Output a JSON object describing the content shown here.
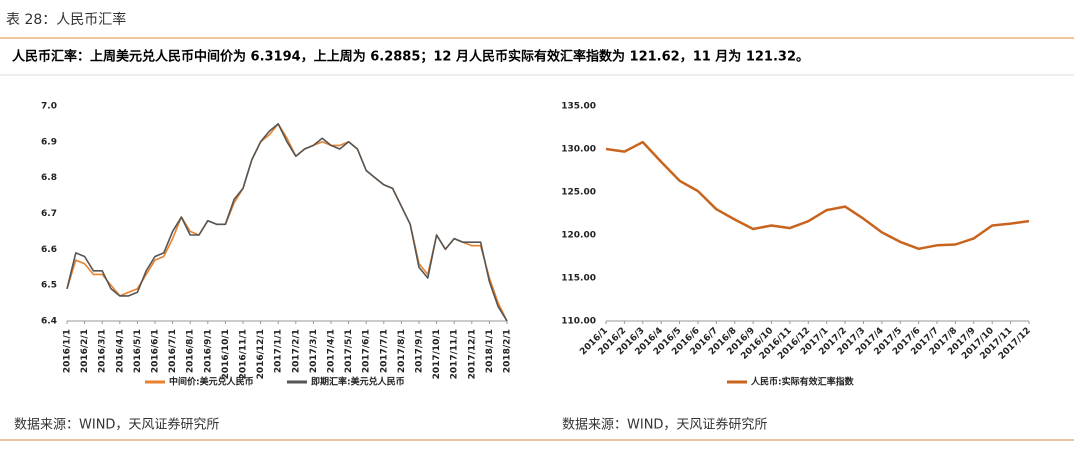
{
  "header": {
    "title": "表 28：人民币汇率",
    "summary": "人民币汇率：上周美元兑人民币中间价为 6.3194，上上周为 6.2885；12 月人民币实际有效汇率指数为 121.62，11 月为 121.32。"
  },
  "chart_data": [
    {
      "type": "line",
      "categories": [
        "2016/1/1",
        null,
        "2016/2/1",
        null,
        "2016/3/1",
        null,
        "2016/4/1",
        null,
        "2016/5/1",
        null,
        "2016/6/1",
        null,
        "2016/7/1",
        null,
        "2016/8/1",
        null,
        "2016/9/1",
        null,
        "2016/10/1",
        null,
        "2016/11/1",
        null,
        "2016/12/1",
        null,
        "2017/1/1",
        null,
        "2017/2/1",
        null,
        "2017/3/1",
        null,
        "2017/4/1",
        null,
        "2017/5/1",
        null,
        "2017/6/1",
        null,
        "2017/7/1",
        null,
        "2017/8/1",
        null,
        "2017/9/1",
        null,
        "2017/10/1",
        null,
        "2017/11/1",
        null,
        "2017/12/1",
        null,
        "2018/1/1",
        null,
        "2018/2/1"
      ],
      "series": [
        {
          "name": "中间价:美元兑人民币",
          "color": "#e8822e",
          "values": [
            6.49,
            6.57,
            6.56,
            6.53,
            6.53,
            6.5,
            6.47,
            6.48,
            6.49,
            6.53,
            6.57,
            6.58,
            6.63,
            6.69,
            6.65,
            6.64,
            6.68,
            6.67,
            6.67,
            6.73,
            6.77,
            6.85,
            6.9,
            6.92,
            6.95,
            6.91,
            6.86,
            6.88,
            6.89,
            6.9,
            6.89,
            6.89,
            6.9,
            6.88,
            6.82,
            6.8,
            6.78,
            6.77,
            6.72,
            6.67,
            6.56,
            6.53,
            6.64,
            6.6,
            6.63,
            6.62,
            6.61,
            6.61,
            6.52,
            6.45,
            6.4
          ]
        },
        {
          "name": "即期汇率:美元兑人民币",
          "color": "#555555",
          "values": [
            6.49,
            6.59,
            6.58,
            6.54,
            6.54,
            6.49,
            6.47,
            6.47,
            6.48,
            6.54,
            6.58,
            6.59,
            6.65,
            6.69,
            6.64,
            6.64,
            6.68,
            6.67,
            6.67,
            6.74,
            6.77,
            6.85,
            6.9,
            6.93,
            6.95,
            6.9,
            6.86,
            6.88,
            6.89,
            6.91,
            6.89,
            6.88,
            6.9,
            6.88,
            6.82,
            6.8,
            6.78,
            6.77,
            6.72,
            6.67,
            6.55,
            6.52,
            6.64,
            6.6,
            6.63,
            6.62,
            6.62,
            6.62,
            6.51,
            6.44,
            6.4
          ]
        }
      ],
      "ylim": [
        6.4,
        7.0
      ],
      "yticks": [
        6.4,
        6.5,
        6.6,
        6.7,
        6.8,
        6.9,
        {
          "value": 7.0,
          "label": "7.0"
        }
      ],
      "grid": false
    },
    {
      "type": "line",
      "categories": [
        "2016/1",
        "2016/2",
        "2016/3",
        "2016/4",
        "2016/5",
        "2016/6",
        "2016/7",
        "2016/8",
        "2016/9",
        "2016/10",
        "2016/11",
        "2016/12",
        "2017/1",
        "2017/2",
        "2017/3",
        "2017/4",
        "2017/5",
        "2017/6",
        "2017/7",
        "2017/8",
        "2017/9",
        "2017/10",
        "2017/11",
        "2017/12"
      ],
      "series": [
        {
          "name": "人民币:实际有效汇率指数",
          "color": "#c8641e",
          "values": [
            130.0,
            129.7,
            130.8,
            128.5,
            126.3,
            125.1,
            123.0,
            121.8,
            120.7,
            121.1,
            120.8,
            121.6,
            122.9,
            123.3,
            121.9,
            120.3,
            119.2,
            118.4,
            118.8,
            118.9,
            119.6,
            121.1,
            121.32,
            121.62
          ]
        }
      ],
      "ylim": [
        110,
        135
      ],
      "yticks": [
        {
          "value": 110,
          "label": "110.00"
        },
        {
          "value": 115,
          "label": "115.00"
        },
        {
          "value": 120,
          "label": "120.00"
        },
        {
          "value": 125,
          "label": "125.00"
        },
        {
          "value": 130,
          "label": "130.00"
        },
        {
          "value": 135,
          "label": "135.00"
        }
      ],
      "grid": false
    }
  ],
  "sources": [
    "数据来源：WIND，天风证券研究所",
    "数据来源：WIND，天风证券研究所"
  ]
}
